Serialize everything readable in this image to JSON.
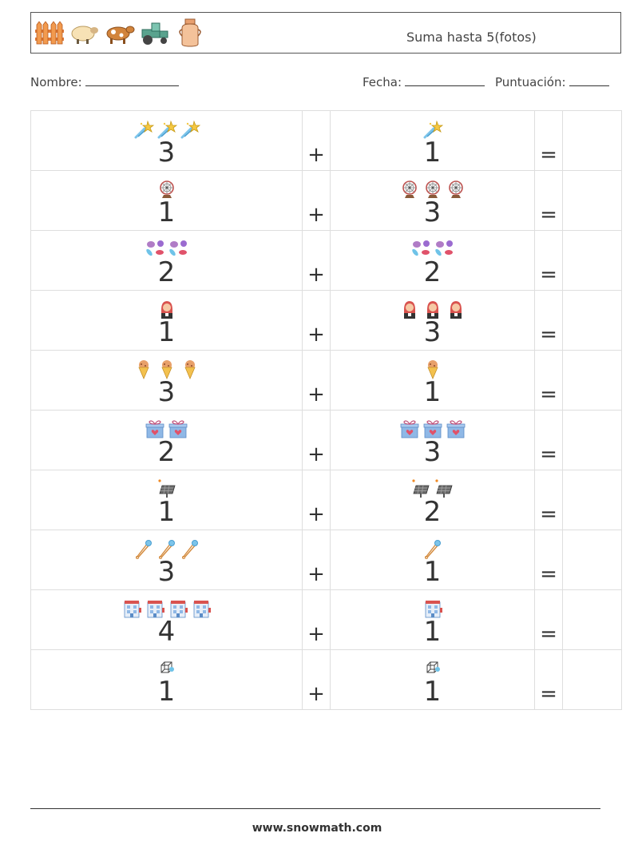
{
  "header": {
    "title": "Suma hasta 5(fotos)",
    "icons": [
      "fence-icon",
      "sheep-icon",
      "cow-icon",
      "tractor-icon",
      "milk-jug-icon"
    ]
  },
  "fields": {
    "name_label": "Nombre:",
    "date_label": "Fecha:",
    "score_label": "Puntuación:"
  },
  "symbols": {
    "plus": "+",
    "equals": "="
  },
  "rows": [
    {
      "a": "3",
      "a_count": 3,
      "a_icon": "shooting-star-icon",
      "b": "1",
      "b_count": 1,
      "b_icon": "shooting-star-icon"
    },
    {
      "a": "1",
      "a_count": 1,
      "a_icon": "ferris-wheel-icon",
      "b": "3",
      "b_count": 3,
      "b_icon": "ferris-wheel-icon"
    },
    {
      "a": "2",
      "a_count": 2,
      "a_icon": "candies-icon",
      "b": "2",
      "b_count": 2,
      "b_icon": "candies-icon"
    },
    {
      "a": "1",
      "a_count": 1,
      "a_icon": "woman-icon",
      "b": "3",
      "b_count": 3,
      "b_icon": "woman-icon"
    },
    {
      "a": "3",
      "a_count": 3,
      "a_icon": "ice-cream-cone-icon",
      "b": "1",
      "b_count": 1,
      "b_icon": "ice-cream-cone-icon"
    },
    {
      "a": "2",
      "a_count": 2,
      "a_icon": "gift-box-icon",
      "b": "3",
      "b_count": 3,
      "b_icon": "gift-box-icon"
    },
    {
      "a": "1",
      "a_count": 1,
      "a_icon": "solar-panel-icon",
      "b": "2",
      "b_count": 2,
      "b_icon": "solar-panel-icon"
    },
    {
      "a": "3",
      "a_count": 3,
      "a_icon": "safety-pin-icon",
      "b": "1",
      "b_count": 1,
      "b_icon": "safety-pin-icon"
    },
    {
      "a": "4",
      "a_count": 4,
      "a_icon": "building-icon",
      "b": "1",
      "b_count": 1,
      "b_icon": "building-icon"
    },
    {
      "a": "1",
      "a_count": 1,
      "a_icon": "cube-icon",
      "b": "1",
      "b_count": 1,
      "b_icon": "cube-icon"
    }
  ],
  "footer": {
    "url": "www.snowmath.com"
  }
}
